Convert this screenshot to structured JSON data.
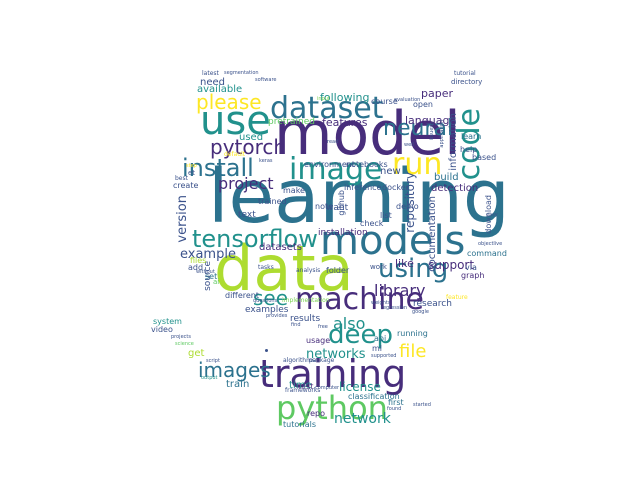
{
  "palette": {
    "dark_purple": "#472d7b",
    "teal": "#21918c",
    "dark_teal": "#2c728e",
    "slate": "#3b528b",
    "green": "#5ec962",
    "lime": "#addc30",
    "yellow": "#fde725",
    "light_green": "#7ad151",
    "mid_teal": "#28ae80"
  },
  "words": {
    "learning": "learning",
    "model": "model",
    "data": "data",
    "models": "models",
    "use": "use",
    "training": "training",
    "python": "python",
    "machine": "machine",
    "dataset": "dataset",
    "image": "image",
    "code": "code",
    "run": "run",
    "install": "install",
    "tensorflow": "tensorflow",
    "using": "using",
    "deep": "deep",
    "neural": "neural",
    "pytorch": "pytorch",
    "please": "please",
    "images": "images",
    "networks": "networks",
    "file": "file",
    "see": "see",
    "also": "also",
    "library": "library",
    "network": "network",
    "license": "license",
    "project": "project",
    "version": "version",
    "example": "example",
    "repository": "repository",
    "support": "support",
    "following": "following",
    "language": "language",
    "paper": "paper",
    "features": "features",
    "need": "need",
    "available": "available",
    "used": "used",
    "pretrained": "pretrained",
    "datasets": "datasets",
    "installation": "installation",
    "like": "like",
    "build": "build",
    "detection": "detection",
    "documentation": "documentation",
    "information": "information",
    "new": "new",
    "train": "train",
    "time": "time",
    "get": "get",
    "results": "results",
    "research": "research",
    "command": "command",
    "tutorials": "tutorials",
    "classification": "classification",
    "first": "first",
    "running": "running",
    "api": "api",
    "ml": "ml",
    "usage": "usage",
    "test": "test",
    "repo": "repo",
    "source": "source",
    "examples": "examples",
    "set": "set",
    "text": "text",
    "want": "want",
    "demo": "demo",
    "list": "list",
    "check": "check",
    "docker": "docker",
    "inference": "inference",
    "environment": "environment",
    "notebooks": "notebooks",
    "github": "github",
    "note": "note",
    "make": "make",
    "trained": "trained",
    "create": "create",
    "add": "add",
    "files": "files",
    "different": "different",
    "video": "video",
    "system": "system",
    "based": "based",
    "download": "download",
    "graph": "graph",
    "via": "via",
    "course": "course",
    "open": "open",
    "latest": "latest",
    "tutorial": "tutorial",
    "directory": "directory",
    "learn": "learn",
    "help": "help",
    "folder": "folder",
    "work": "work",
    "tasks": "tasks",
    "analysis": "analysis",
    "implementation": "implementation",
    "et": "et",
    "best": "best",
    "default": "default",
    "started": "started",
    "found": "found",
    "computer": "computer",
    "frameworks": "frameworks",
    "algorithms": "algorithms",
    "package": "package",
    "supported": "supported",
    "questions": "questions",
    "provides": "provides",
    "find": "find",
    "free": "free",
    "projects": "projects",
    "science": "science",
    "output": "output",
    "script": "script",
    "without": "without",
    "segmentation": "segmentation",
    "software": "software",
    "input": "input",
    "evaluation": "evaluation",
    "well": "well",
    "read": "read",
    "keras": "keras",
    "step": "step",
    "weights": "weights",
    "regression": "regression",
    "google": "google",
    "objectlive": "objectlive",
    "easy": "easy",
    "feature": "feature",
    "issues": "issues",
    "application": "application",
    "ai": "ai"
  }
}
